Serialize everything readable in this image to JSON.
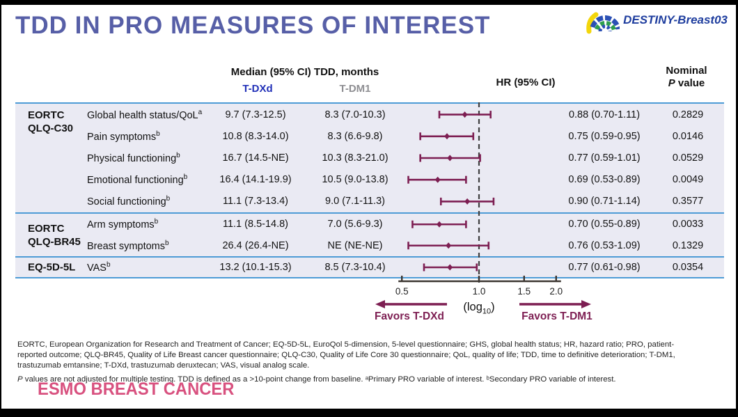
{
  "title": "TDD IN PRO MEASURES OF INTEREST",
  "logo": {
    "text": "DESTINY-Breast03"
  },
  "colors": {
    "title_purple": "#575fa7",
    "tdxd_blue": "#2231b8",
    "tdm1_gray": "#8e8e92",
    "maroon": "#7d1e52",
    "blue_line": "#4d9bd6",
    "table_bg": "#eaeaf3",
    "esmo_pink": "#d8517f",
    "destiny_blue": "#1e3d9e",
    "axis_dark": "#3b3530"
  },
  "table": {
    "header": {
      "median_group": "Median (95% CI) TDD, months",
      "tdxd": "T-DXd",
      "tdm1": "T-DM1",
      "hr": "HR (95% CI)",
      "nominal_line1": "Nominal",
      "nominal_p": "P",
      "nominal_rest": " value"
    },
    "groups": [
      {
        "label_lines": [
          "EORTC",
          "QLQ-C30"
        ],
        "row_indices": [
          0,
          1,
          2,
          3,
          4
        ]
      },
      {
        "label_lines": [
          "EORTC",
          "QLQ-BR45"
        ],
        "row_indices": [
          5,
          6
        ]
      },
      {
        "label_lines": [
          "EQ-5D-5L"
        ],
        "row_indices": [
          7
        ]
      }
    ]
  },
  "chart_data": {
    "type": "forest",
    "x_axis": {
      "scale": "log10",
      "ticks": [
        "0.5",
        "1.0",
        "1.5",
        "2.0"
      ],
      "tick_values": [
        0.5,
        1.0,
        1.5,
        2.0
      ],
      "reference_line": 1.0,
      "label_prefix": "(log",
      "label_sub": "10",
      "label_suffix": ")"
    },
    "favors_left": "Favors T-DXd",
    "favors_right": "Favors T-DM1",
    "rows": [
      {
        "group": "EORTC QLQ-C30",
        "measure": "Global health status/QoL",
        "sup": "a",
        "tdxd_median": "9.7 (7.3-12.5)",
        "tdm1_median": "8.3 (7.0-10.3)",
        "hr": 0.88,
        "ci_low": 0.7,
        "ci_high": 1.11,
        "hr_text": "0.88 (0.70-1.11)",
        "p_value": "0.2829"
      },
      {
        "group": "EORTC QLQ-C30",
        "measure": "Pain symptoms",
        "sup": "b",
        "tdxd_median": "10.8 (8.3-14.0)",
        "tdm1_median": "8.3 (6.6-9.8)",
        "hr": 0.75,
        "ci_low": 0.59,
        "ci_high": 0.95,
        "hr_text": "0.75 (0.59-0.95)",
        "p_value": "0.0146"
      },
      {
        "group": "EORTC QLQ-C30",
        "measure": "Physical functioning",
        "sup": "b",
        "tdxd_median": "16.7 (14.5-NE)",
        "tdm1_median": "10.3 (8.3-21.0)",
        "hr": 0.77,
        "ci_low": 0.59,
        "ci_high": 1.01,
        "hr_text": "0.77 (0.59-1.01)",
        "p_value": "0.0529"
      },
      {
        "group": "EORTC QLQ-C30",
        "measure": "Emotional functioning",
        "sup": "b",
        "tdxd_median": "16.4 (14.1-19.9)",
        "tdm1_median": "10.5 (9.0-13.8)",
        "hr": 0.69,
        "ci_low": 0.53,
        "ci_high": 0.89,
        "hr_text": "0.69 (0.53-0.89)",
        "p_value": "0.0049"
      },
      {
        "group": "EORTC QLQ-C30",
        "measure": "Social functioning",
        "sup": "b",
        "tdxd_median": "11.1 (7.3-13.4)",
        "tdm1_median": "9.0 (7.1-11.3)",
        "hr": 0.9,
        "ci_low": 0.71,
        "ci_high": 1.14,
        "hr_text": "0.90 (0.71-1.14)",
        "p_value": "0.3577"
      },
      {
        "group": "EORTC QLQ-BR45",
        "measure": "Arm symptoms",
        "sup": "b",
        "tdxd_median": "11.1 (8.5-14.8)",
        "tdm1_median": "7.0 (5.6-9.3)",
        "hr": 0.7,
        "ci_low": 0.55,
        "ci_high": 0.89,
        "hr_text": "0.70 (0.55-0.89)",
        "p_value": "0.0033"
      },
      {
        "group": "EORTC QLQ-BR45",
        "measure": "Breast symptoms",
        "sup": "b",
        "tdxd_median": "26.4 (26.4-NE)",
        "tdm1_median": "NE (NE-NE)",
        "hr": 0.76,
        "ci_low": 0.53,
        "ci_high": 1.09,
        "hr_text": "0.76 (0.53-1.09)",
        "p_value": "0.1329"
      },
      {
        "group": "EQ-5D-5L",
        "measure": "VAS",
        "sup": "b",
        "tdxd_median": "13.2 (10.1-15.3)",
        "tdm1_median": "8.5 (7.3-10.4)",
        "hr": 0.77,
        "ci_low": 0.61,
        "ci_high": 0.98,
        "hr_text": "0.77 (0.61-0.98)",
        "p_value": "0.0354"
      }
    ]
  },
  "footnotes": {
    "abbrev_lines": [
      "EORTC, European Organization for Research and Treatment of Cancer; EQ-5D-5L, EuroQol 5-dimension, 5-level questionnaire; GHS, global health status; HR, hazard ratio; PRO, patient-",
      "reported outcome; QLQ-BR45, Quality of Life Breast cancer questionnaire; QLQ-C30, Quality of Life Core 30 questionnaire; QoL, quality of life; TDD, time to definitive deterioration; T-DM1,",
      "trastuzumab emtansine; T-DXd, trastuzumab deruxtecan; VAS, visual analog scale."
    ],
    "p_note_italic": "P",
    "p_note_rest": " values are not adjusted for multiple testing. TDD is defined as a >10-point change from baseline. ᵃPrimary PRO variable of interest. ᵇSecondary PRO variable of interest."
  },
  "esmo_logo_text": "ESMO BREAST CANCER"
}
